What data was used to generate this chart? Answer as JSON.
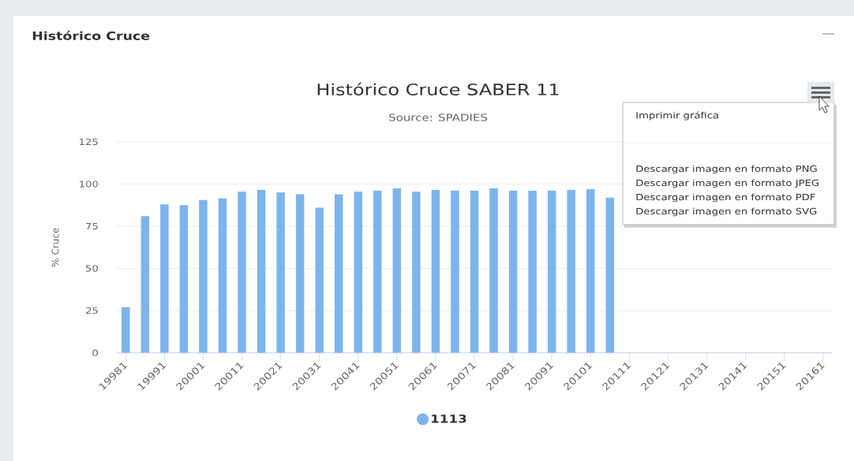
{
  "chart_data": {
    "type": "bar",
    "title": "Histórico Cruce SABER 11",
    "subtitle": "Source: SPADIES",
    "ylabel": "% Cruce",
    "categories": [
      "19981",
      null,
      "19991",
      null,
      "20001",
      null,
      "20011",
      null,
      "20021",
      null,
      "20031",
      null,
      "20041",
      null,
      "20051",
      null,
      "20061",
      null,
      "20071",
      null,
      "20081",
      null,
      "20091",
      null,
      "20101",
      null,
      "20111",
      null,
      "20121",
      null,
      "20131",
      null,
      "20141",
      null,
      "20151",
      null,
      "20161"
    ],
    "series": [
      {
        "name": "1113",
        "color": "#7cb5ec",
        "values": [
          27,
          81,
          88,
          87.5,
          90.5,
          91.5,
          95.5,
          96.5,
          95,
          94,
          86,
          94,
          95.5,
          96,
          97.5,
          95.5,
          96.5,
          96,
          96,
          97.5,
          96,
          96,
          96,
          96.5,
          97,
          92,
          null,
          null,
          null,
          null,
          null,
          null,
          null,
          null,
          null,
          null,
          null
        ]
      }
    ],
    "ylim": [
      0,
      125
    ],
    "yticks": [
      0,
      25,
      50,
      75,
      100,
      125
    ],
    "grid": "y",
    "legend": "bottom",
    "annotations": [
      "Histórico Cruce",
      "Imprimir gráfica",
      "Descargar imagen en formato PNG",
      "Descargar imagen en formato JPEG",
      "Descargar imagen en formato PDF",
      "Descargar imagen en formato SVG"
    ]
  }
}
